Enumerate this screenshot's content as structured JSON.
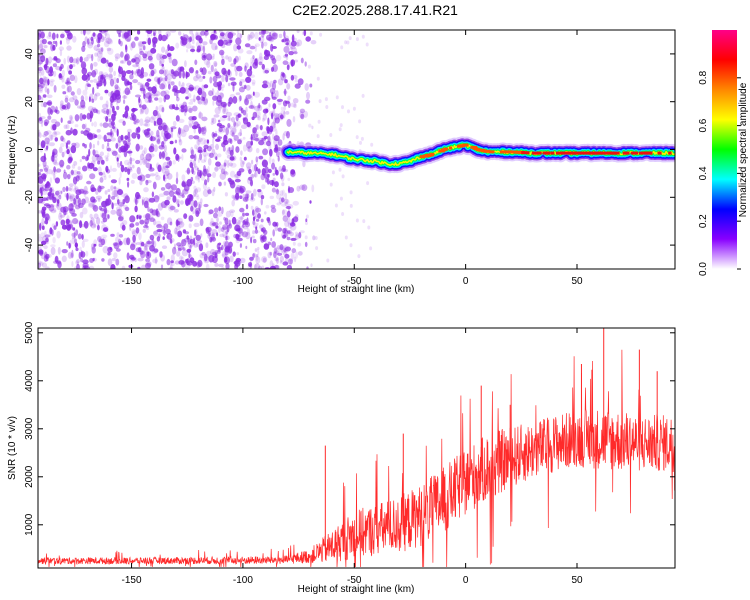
{
  "title": "C2E2.2025.288.17.41.R21",
  "chart_data": [
    {
      "type": "heatmap",
      "xlabel": "Height of straight line (km)",
      "ylabel": "Frequency (Hz)",
      "xlim": [
        -192,
        94
      ],
      "ylim": [
        -50,
        50
      ],
      "x_ticks": [
        "-150",
        "-100",
        "-50",
        "0",
        "50"
      ],
      "x_tick_values": [
        -150,
        -100,
        -50,
        0,
        50
      ],
      "y_ticks": [
        "-40",
        "-20",
        "0",
        "20",
        "40"
      ],
      "y_tick_values": [
        -40,
        -20,
        0,
        20,
        40
      ],
      "noise_region_x": [
        -192,
        -77
      ],
      "signal_start_x": -80,
      "center_line": {
        "x": [
          -80,
          -70,
          -60,
          -50,
          -40,
          -35,
          -30,
          -25,
          -20,
          -15,
          -10,
          -5,
          0,
          5,
          10,
          20,
          30,
          40,
          50,
          60,
          70,
          80,
          94
        ],
        "y": [
          -1,
          -1.5,
          -2,
          -4,
          -5,
          -6,
          -6,
          -5,
          -3,
          -2,
          0,
          1,
          2,
          0,
          -1,
          -1,
          -1.5,
          -1.5,
          -1.5,
          -1.5,
          -1.5,
          -1.5,
          -1.5
        ]
      },
      "colorbar": {
        "label": "Normalized spectral amplitude",
        "ticks": [
          "0.0",
          "0.2",
          "0.4",
          "0.6",
          "0.8"
        ],
        "tick_values": [
          0,
          0.2,
          0.4,
          0.6,
          0.8
        ],
        "range": [
          0,
          1
        ],
        "colors": [
          "#ffffff",
          "#8800ff",
          "#0000ff",
          "#00ffff",
          "#00ff00",
          "#ffff00",
          "#ff8800",
          "#ff0000",
          "#ff0088"
        ]
      },
      "noise_color": "#8a2be2"
    },
    {
      "type": "line",
      "xlabel": "Height of straight line (km)",
      "ylabel": "SNR (10 * v/v)",
      "xlim": [
        -192,
        94
      ],
      "ylim": [
        100,
        5100
      ],
      "x_ticks": [
        "-150",
        "-100",
        "-50",
        "0",
        "50"
      ],
      "x_tick_values": [
        -150,
        -100,
        -50,
        0,
        50
      ],
      "y_ticks": [
        "1000",
        "2000",
        "3000",
        "4000",
        "5000"
      ],
      "y_tick_values": [
        1000,
        2000,
        3000,
        4000,
        5000
      ],
      "line_color": "#ff2a2a",
      "envelope": {
        "x": [
          -192,
          -150,
          -100,
          -80,
          -70,
          -60,
          -50,
          -40,
          -30,
          -20,
          -10,
          0,
          10,
          20,
          30,
          40,
          50,
          60,
          70,
          80,
          94
        ],
        "mean": [
          250,
          250,
          260,
          270,
          350,
          550,
          800,
          900,
          1000,
          1200,
          1500,
          1900,
          2200,
          2400,
          2550,
          2700,
          2800,
          2800,
          2750,
          2700,
          2700
        ],
        "spread": [
          70,
          70,
          80,
          90,
          150,
          350,
          500,
          550,
          600,
          650,
          700,
          700,
          700,
          650,
          600,
          600,
          600,
          650,
          650,
          600,
          600
        ]
      },
      "spikes": [
        {
          "x": 62,
          "y": 5100
        },
        {
          "x": 52,
          "y": 4350
        },
        {
          "x": 78,
          "y": 4650
        },
        {
          "x": 7,
          "y": 3900
        },
        {
          "x": -28,
          "y": 2900
        },
        {
          "x": -63,
          "y": 2650
        },
        {
          "x": 20,
          "y": 3500
        },
        {
          "x": 86,
          "y": 4200
        }
      ]
    }
  ]
}
